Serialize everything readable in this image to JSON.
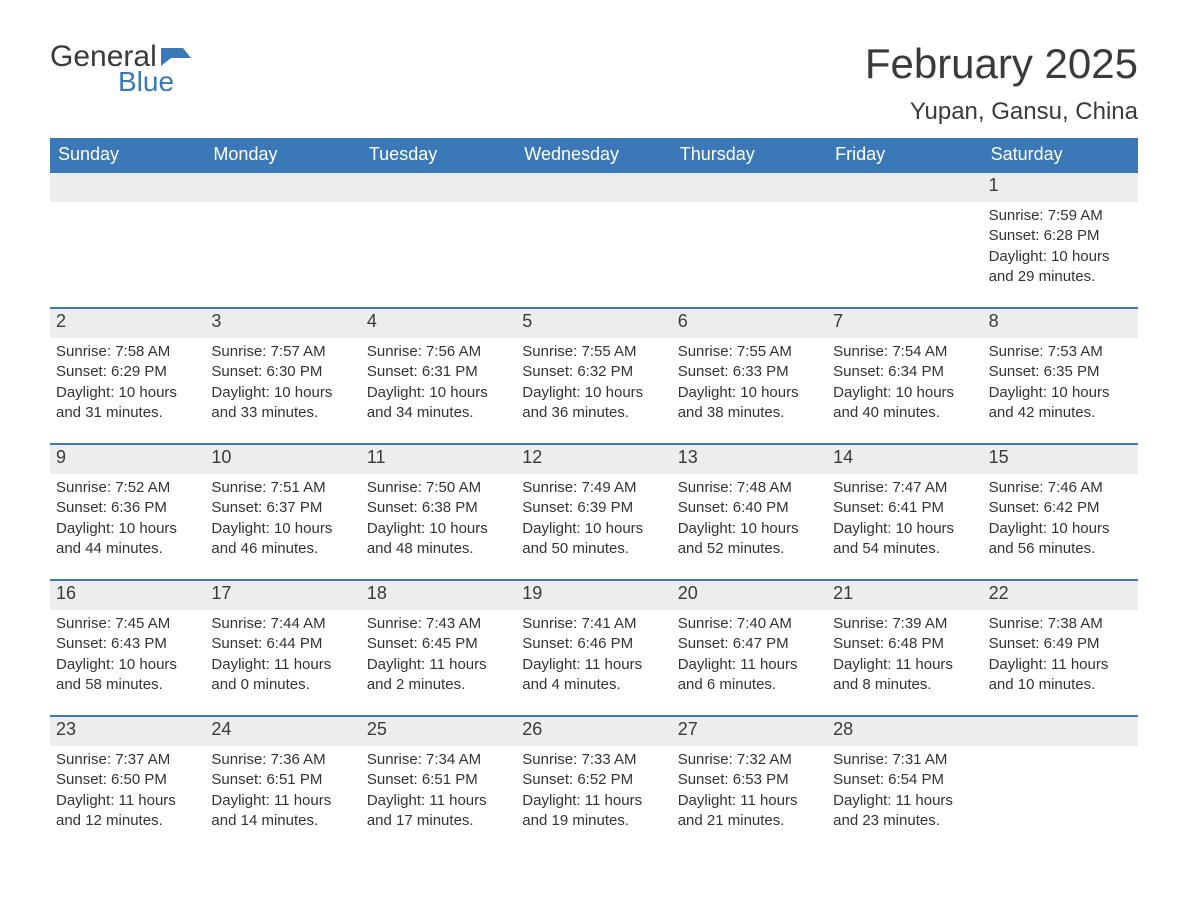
{
  "brand": {
    "word1": "General",
    "word2": "Blue",
    "flag_color": "#3a78b8"
  },
  "title": "February 2025",
  "location": "Yupan, Gansu, China",
  "colors": {
    "header_bg": "#3a78b8",
    "header_text": "#ffffff",
    "row_border": "#3a78b8",
    "daynum_bg": "#eceeee",
    "text": "#333333",
    "page_bg": "#ffffff"
  },
  "typography": {
    "title_fontsize": 42,
    "location_fontsize": 24,
    "dow_fontsize": 18,
    "daynum_fontsize": 18,
    "body_fontsize": 15
  },
  "days_of_week": [
    "Sunday",
    "Monday",
    "Tuesday",
    "Wednesday",
    "Thursday",
    "Friday",
    "Saturday"
  ],
  "labels": {
    "sunrise": "Sunrise:",
    "sunset": "Sunset:",
    "daylight": "Daylight:"
  },
  "weeks": [
    [
      null,
      null,
      null,
      null,
      null,
      null,
      {
        "n": "1",
        "sunrise": "7:59 AM",
        "sunset": "6:28 PM",
        "daylight": "10 hours and 29 minutes."
      }
    ],
    [
      {
        "n": "2",
        "sunrise": "7:58 AM",
        "sunset": "6:29 PM",
        "daylight": "10 hours and 31 minutes."
      },
      {
        "n": "3",
        "sunrise": "7:57 AM",
        "sunset": "6:30 PM",
        "daylight": "10 hours and 33 minutes."
      },
      {
        "n": "4",
        "sunrise": "7:56 AM",
        "sunset": "6:31 PM",
        "daylight": "10 hours and 34 minutes."
      },
      {
        "n": "5",
        "sunrise": "7:55 AM",
        "sunset": "6:32 PM",
        "daylight": "10 hours and 36 minutes."
      },
      {
        "n": "6",
        "sunrise": "7:55 AM",
        "sunset": "6:33 PM",
        "daylight": "10 hours and 38 minutes."
      },
      {
        "n": "7",
        "sunrise": "7:54 AM",
        "sunset": "6:34 PM",
        "daylight": "10 hours and 40 minutes."
      },
      {
        "n": "8",
        "sunrise": "7:53 AM",
        "sunset": "6:35 PM",
        "daylight": "10 hours and 42 minutes."
      }
    ],
    [
      {
        "n": "9",
        "sunrise": "7:52 AM",
        "sunset": "6:36 PM",
        "daylight": "10 hours and 44 minutes."
      },
      {
        "n": "10",
        "sunrise": "7:51 AM",
        "sunset": "6:37 PM",
        "daylight": "10 hours and 46 minutes."
      },
      {
        "n": "11",
        "sunrise": "7:50 AM",
        "sunset": "6:38 PM",
        "daylight": "10 hours and 48 minutes."
      },
      {
        "n": "12",
        "sunrise": "7:49 AM",
        "sunset": "6:39 PM",
        "daylight": "10 hours and 50 minutes."
      },
      {
        "n": "13",
        "sunrise": "7:48 AM",
        "sunset": "6:40 PM",
        "daylight": "10 hours and 52 minutes."
      },
      {
        "n": "14",
        "sunrise": "7:47 AM",
        "sunset": "6:41 PM",
        "daylight": "10 hours and 54 minutes."
      },
      {
        "n": "15",
        "sunrise": "7:46 AM",
        "sunset": "6:42 PM",
        "daylight": "10 hours and 56 minutes."
      }
    ],
    [
      {
        "n": "16",
        "sunrise": "7:45 AM",
        "sunset": "6:43 PM",
        "daylight": "10 hours and 58 minutes."
      },
      {
        "n": "17",
        "sunrise": "7:44 AM",
        "sunset": "6:44 PM",
        "daylight": "11 hours and 0 minutes."
      },
      {
        "n": "18",
        "sunrise": "7:43 AM",
        "sunset": "6:45 PM",
        "daylight": "11 hours and 2 minutes."
      },
      {
        "n": "19",
        "sunrise": "7:41 AM",
        "sunset": "6:46 PM",
        "daylight": "11 hours and 4 minutes."
      },
      {
        "n": "20",
        "sunrise": "7:40 AM",
        "sunset": "6:47 PM",
        "daylight": "11 hours and 6 minutes."
      },
      {
        "n": "21",
        "sunrise": "7:39 AM",
        "sunset": "6:48 PM",
        "daylight": "11 hours and 8 minutes."
      },
      {
        "n": "22",
        "sunrise": "7:38 AM",
        "sunset": "6:49 PM",
        "daylight": "11 hours and 10 minutes."
      }
    ],
    [
      {
        "n": "23",
        "sunrise": "7:37 AM",
        "sunset": "6:50 PM",
        "daylight": "11 hours and 12 minutes."
      },
      {
        "n": "24",
        "sunrise": "7:36 AM",
        "sunset": "6:51 PM",
        "daylight": "11 hours and 14 minutes."
      },
      {
        "n": "25",
        "sunrise": "7:34 AM",
        "sunset": "6:51 PM",
        "daylight": "11 hours and 17 minutes."
      },
      {
        "n": "26",
        "sunrise": "7:33 AM",
        "sunset": "6:52 PM",
        "daylight": "11 hours and 19 minutes."
      },
      {
        "n": "27",
        "sunrise": "7:32 AM",
        "sunset": "6:53 PM",
        "daylight": "11 hours and 21 minutes."
      },
      {
        "n": "28",
        "sunrise": "7:31 AM",
        "sunset": "6:54 PM",
        "daylight": "11 hours and 23 minutes."
      },
      null
    ]
  ]
}
